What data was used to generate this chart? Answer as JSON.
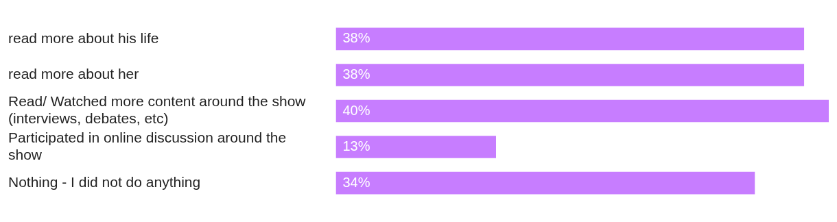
{
  "chart_data": {
    "type": "bar",
    "orientation": "horizontal",
    "categories": [
      "read more about his life",
      "read more about her",
      "Read/ Watched more content around the show (interviews, debates, etc)",
      "Participated in online discussion around the show",
      "Nothing - I did not do anything"
    ],
    "values": [
      38,
      38,
      40,
      13,
      34
    ],
    "value_labels": [
      "38%",
      "38%",
      "40%",
      "13%",
      "34%"
    ],
    "color": "#c77dff",
    "legend": false
  }
}
